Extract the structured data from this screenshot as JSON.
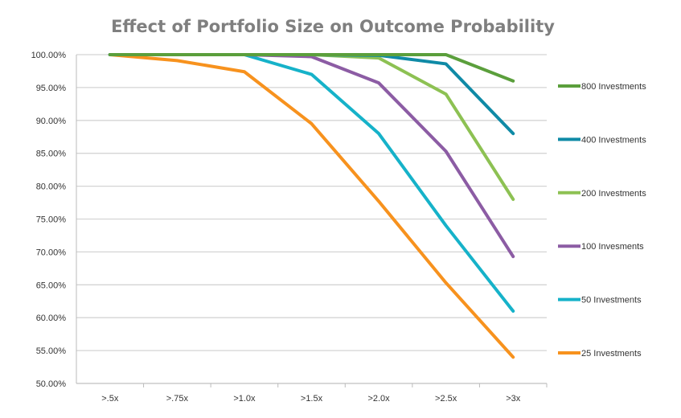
{
  "chart_data": {
    "type": "line",
    "title": "Effect of Portfolio Size on Outcome Probability",
    "xlabel": "",
    "ylabel": "",
    "categories": [
      ">.5x",
      ">.75x",
      ">1.0x",
      ">1.5x",
      ">2.0x",
      ">2.5x",
      ">3x"
    ],
    "ylim": [
      50,
      100
    ],
    "yticks": [
      "50.00%",
      "55.00%",
      "60.00%",
      "65.00%",
      "70.00%",
      "75.00%",
      "80.00%",
      "85.00%",
      "90.00%",
      "95.00%",
      "100.00%"
    ],
    "grid": true,
    "legend_position": "right",
    "series": [
      {
        "name": "800 Investments",
        "color": "#5b9f3c",
        "values": [
          100,
          100,
          100,
          100,
          100,
          100,
          96.0
        ]
      },
      {
        "name": "400 Investments",
        "color": "#0f8aa6",
        "values": [
          100,
          100,
          100,
          100,
          99.9,
          98.6,
          88.0
        ]
      },
      {
        "name": "200 Investments",
        "color": "#8dc153",
        "values": [
          100,
          100,
          100,
          100,
          99.5,
          94.0,
          78.0
        ]
      },
      {
        "name": "100 Invesments",
        "color": "#8c5ca4",
        "values": [
          100,
          100,
          100,
          99.7,
          95.7,
          85.3,
          69.3
        ]
      },
      {
        "name": "50 Investments",
        "color": "#16b2c9",
        "values": [
          100,
          100,
          100,
          97.0,
          88.0,
          74.0,
          61.0
        ]
      },
      {
        "name": "25 Investments",
        "color": "#f7921e",
        "values": [
          100,
          99.1,
          97.4,
          89.5,
          77.7,
          65.3,
          54.0
        ]
      }
    ]
  }
}
